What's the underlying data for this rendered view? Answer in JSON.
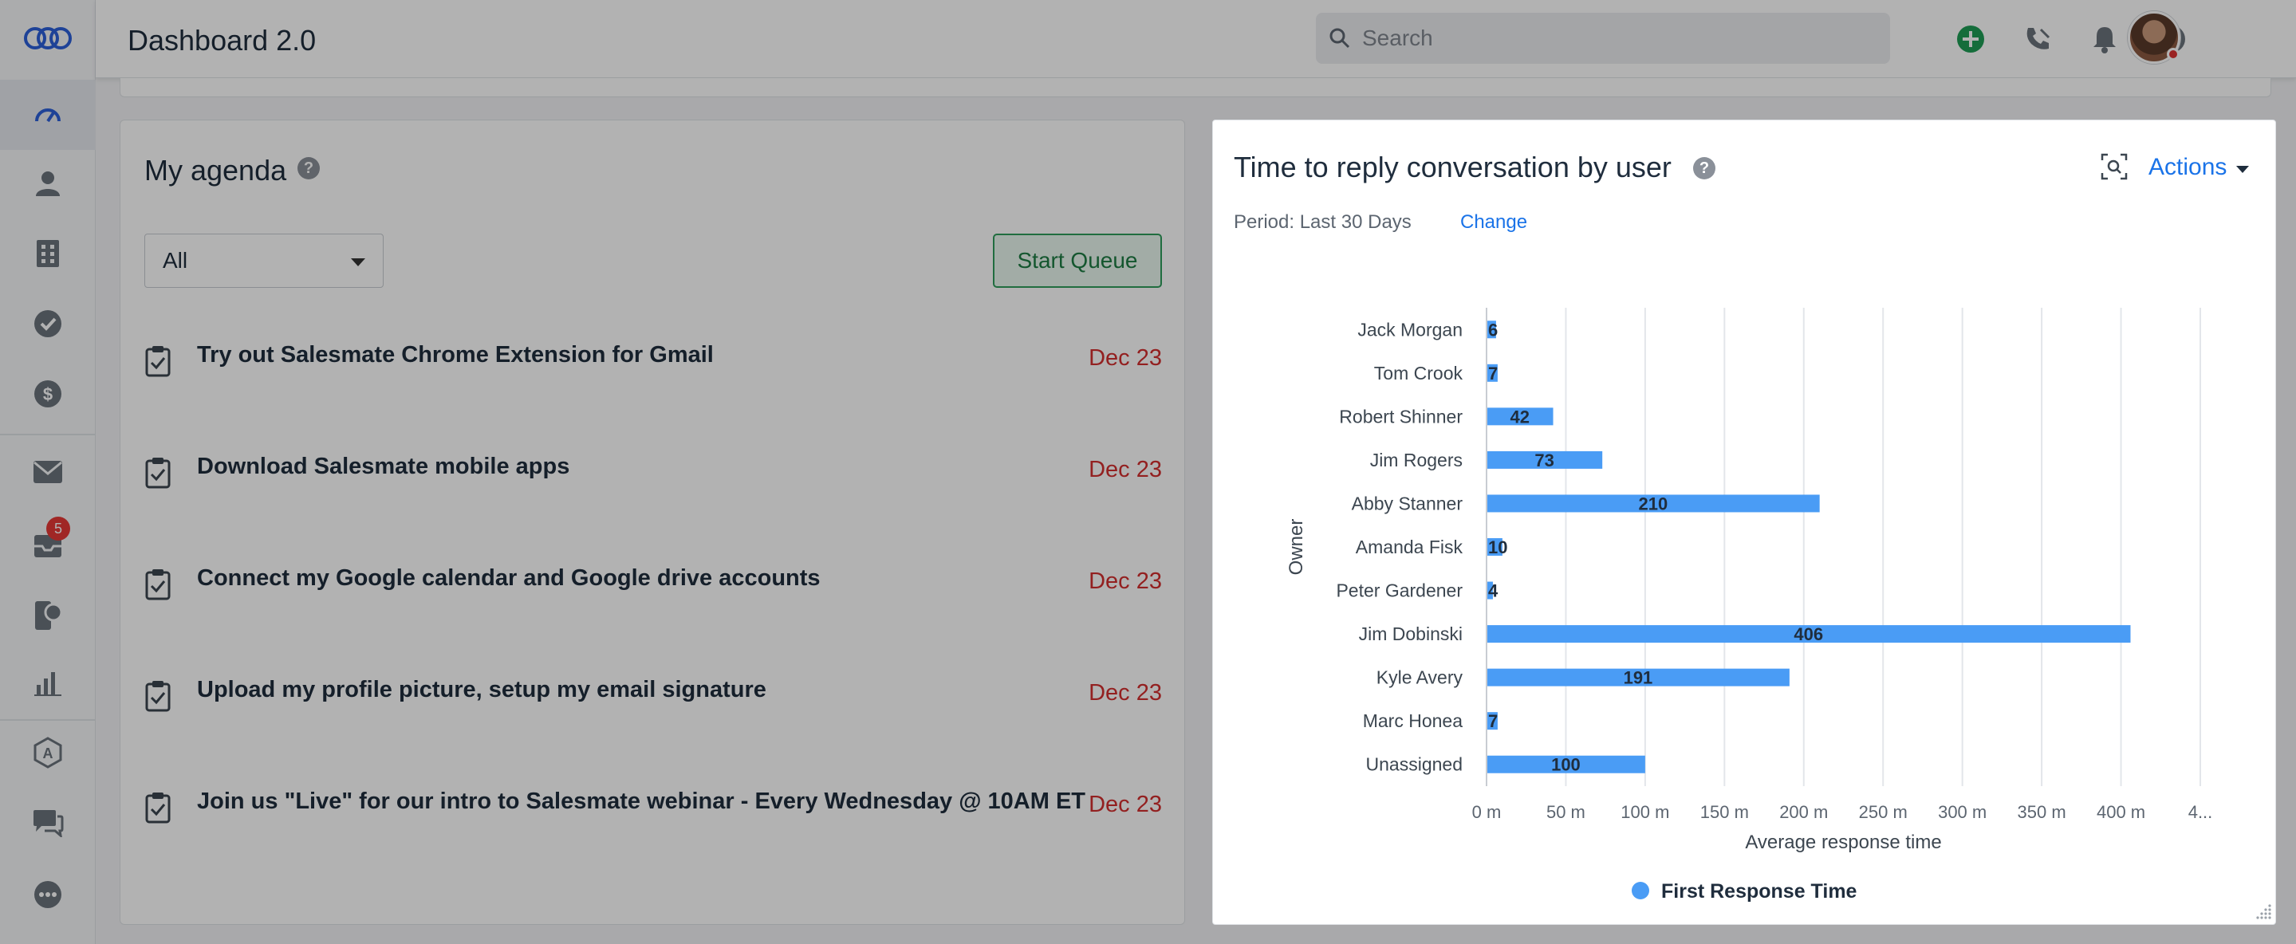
{
  "app": {
    "page_title": "Dashboard 2.0"
  },
  "search": {
    "placeholder": "Search"
  },
  "sidebar": {
    "items": [
      {
        "name": "dashboard",
        "icon": "speedometer-icon"
      },
      {
        "name": "contacts",
        "icon": "person-icon"
      },
      {
        "name": "companies",
        "icon": "building-icon"
      },
      {
        "name": "tasks",
        "icon": "check-circle-icon"
      },
      {
        "name": "deals",
        "icon": "dollar-icon"
      },
      {
        "name": "emails",
        "icon": "envelope-icon"
      },
      {
        "name": "inbox",
        "icon": "inbox-icon",
        "badge": "5"
      },
      {
        "name": "sequences",
        "icon": "phone-chat-icon"
      },
      {
        "name": "reports",
        "icon": "bar-chart-icon"
      },
      {
        "name": "automation",
        "icon": "auto-icon"
      },
      {
        "name": "chat",
        "icon": "chat-icon"
      },
      {
        "name": "more",
        "icon": "more-icon"
      }
    ]
  },
  "agenda": {
    "title": "My agenda",
    "filter_value": "All",
    "start_queue_label": "Start Queue",
    "tasks": [
      {
        "text": "Try out Salesmate Chrome Extension for Gmail",
        "date": "Dec 23"
      },
      {
        "text": "Download Salesmate mobile apps",
        "date": "Dec 23"
      },
      {
        "text": "Connect my Google calendar and Google drive accounts",
        "date": "Dec 23"
      },
      {
        "text": "Upload my profile picture, setup my email signature",
        "date": "Dec 23"
      },
      {
        "text": "Join us \"Live\" for our intro to Salesmate webinar - Every Wednesday @ 10AM ET",
        "date": "Dec 23"
      }
    ]
  },
  "report": {
    "title": "Time to reply conversation by user",
    "period_label": "Period: Last 30 Days",
    "change_label": "Change",
    "actions_label": "Actions"
  },
  "chart_data": {
    "type": "bar",
    "orientation": "horizontal",
    "ylabel": "Owner",
    "xlabel": "Average response time",
    "categories": [
      "Jack Morgan",
      "Tom Crook",
      "Robert Shinner",
      "Jim Rogers",
      "Abby Stanner",
      "Amanda Fisk",
      "Peter Gardener",
      "Jim Dobinski",
      "Kyle Avery",
      "Marc Honea",
      "Unassigned"
    ],
    "series": [
      {
        "name": "First Response Time",
        "values": [
          6,
          7,
          42,
          73,
          210,
          10,
          4,
          406,
          191,
          7,
          100
        ]
      }
    ],
    "x_ticks": [
      "0 m",
      "50 m",
      "100 m",
      "150 m",
      "200 m",
      "250 m",
      "300 m",
      "350 m",
      "400 m",
      "4..."
    ],
    "xlim": [
      0,
      450
    ],
    "grid": "vertical",
    "legend": "bottom",
    "bar_color": "#4a9cf5"
  }
}
